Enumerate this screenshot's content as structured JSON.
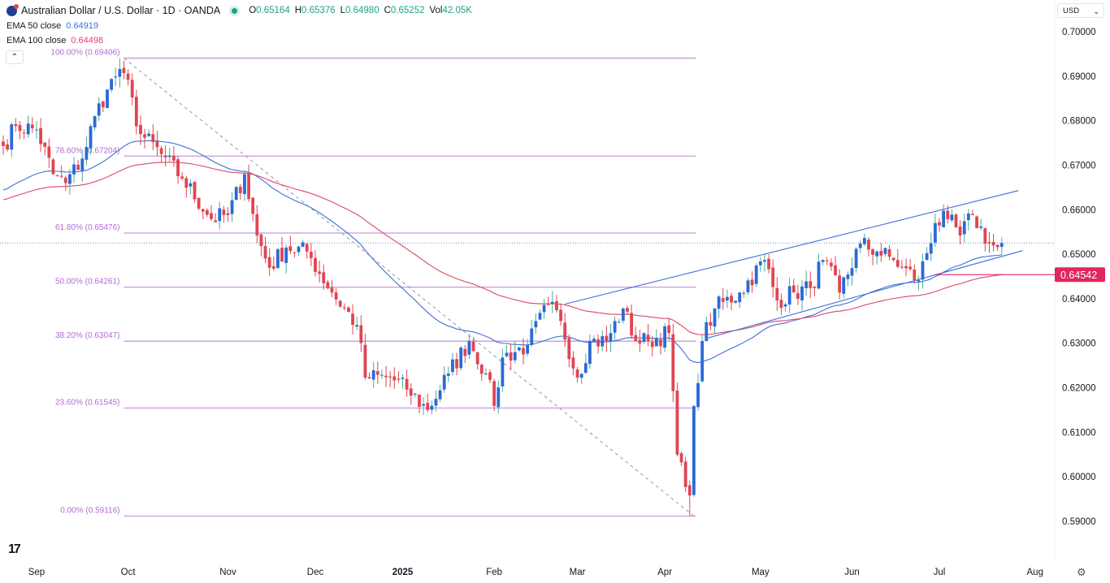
{
  "header": {
    "symbol": "Australian Dollar / U.S. Dollar · 1D · OANDA",
    "open_label": "O",
    "open": "0.65164",
    "high_label": "H",
    "high": "0.65376",
    "low_label": "L",
    "low": "0.64980",
    "close_label": "C",
    "close": "0.65252",
    "vol_label": "Vol",
    "vol": "42.05K"
  },
  "indicators": [
    {
      "label": "EMA 50 close",
      "value": "0.64919",
      "color": "#3d6fd8"
    },
    {
      "label": "EMA 100 close",
      "value": "0.64498",
      "color": "#e0456a"
    }
  ],
  "currency_selector": "USD",
  "collapse_icon": "chevron-up-icon",
  "logo": "TV",
  "chart_data": {
    "type": "candlestick",
    "title": "Australian Dollar / U.S. Dollar · 1D · OANDA",
    "ylim": [
      0.585,
      0.705
    ],
    "y_ticks": [
      "0.70000",
      "0.69000",
      "0.68000",
      "0.67000",
      "0.66000",
      "0.65000",
      "0.64000",
      "0.63000",
      "0.62000",
      "0.61000",
      "0.60000",
      "0.59000"
    ],
    "x_ticks": [
      {
        "label": "Sep",
        "day": 8
      },
      {
        "label": "Oct",
        "day": 30
      },
      {
        "label": "Nov",
        "day": 54
      },
      {
        "label": "Dec",
        "day": 75
      },
      {
        "label": "2025",
        "day": 96,
        "bold": true
      },
      {
        "label": "Feb",
        "day": 118
      },
      {
        "label": "Mar",
        "day": 138
      },
      {
        "label": "Apr",
        "day": 159
      },
      {
        "label": "May",
        "day": 182
      },
      {
        "label": "Jun",
        "day": 204
      },
      {
        "label": "Jul",
        "day": 225
      },
      {
        "label": "Aug",
        "day": 248
      }
    ],
    "days_visible": 253,
    "close_anchors": [
      [
        0,
        0.6743
      ],
      [
        3,
        0.6788
      ],
      [
        8,
        0.678
      ],
      [
        12,
        0.668
      ],
      [
        15,
        0.666
      ],
      [
        19,
        0.6715
      ],
      [
        22,
        0.681
      ],
      [
        25,
        0.687
      ],
      [
        28,
        0.6916
      ],
      [
        29,
        0.6907
      ],
      [
        33,
        0.677
      ],
      [
        38,
        0.6725
      ],
      [
        43,
        0.667
      ],
      [
        50,
        0.6579
      ],
      [
        54,
        0.6588
      ],
      [
        58,
        0.668
      ],
      [
        61,
        0.6542
      ],
      [
        64,
        0.647
      ],
      [
        68,
        0.6515
      ],
      [
        73,
        0.6506
      ],
      [
        79,
        0.6414
      ],
      [
        85,
        0.6341
      ],
      [
        87,
        0.6223
      ],
      [
        93,
        0.6223
      ],
      [
        97,
        0.6196
      ],
      [
        102,
        0.615
      ],
      [
        107,
        0.6232
      ],
      [
        112,
        0.6305
      ],
      [
        116,
        0.6232
      ],
      [
        118,
        0.6159
      ],
      [
        120,
        0.6268
      ],
      [
        126,
        0.6296
      ],
      [
        131,
        0.6387
      ],
      [
        134,
        0.635
      ],
      [
        138,
        0.6223
      ],
      [
        141,
        0.6305
      ],
      [
        145,
        0.6305
      ],
      [
        149,
        0.6378
      ],
      [
        152,
        0.6305
      ],
      [
        155,
        0.6305
      ],
      [
        160,
        0.6323
      ],
      [
        162,
        0.605
      ],
      [
        164,
        0.5977
      ],
      [
        165,
        0.5958
      ],
      [
        166,
        0.6159
      ],
      [
        168,
        0.6305
      ],
      [
        171,
        0.6378
      ],
      [
        177,
        0.6414
      ],
      [
        183,
        0.6487
      ],
      [
        186,
        0.6396
      ],
      [
        190,
        0.6414
      ],
      [
        194,
        0.6424
      ],
      [
        197,
        0.6487
      ],
      [
        201,
        0.6414
      ],
      [
        206,
        0.6524
      ],
      [
        210,
        0.6506
      ],
      [
        214,
        0.6487
      ],
      [
        216,
        0.647
      ],
      [
        220,
        0.6442
      ],
      [
        224,
        0.657
      ],
      [
        227,
        0.6579
      ],
      [
        230,
        0.6542
      ],
      [
        233,
        0.6588
      ],
      [
        237,
        0.6524
      ],
      [
        239,
        0.6516
      ],
      [
        240,
        0.6525
      ]
    ],
    "last_candle": {
      "open": 0.65164,
      "high": 0.65376,
      "low": 0.6498,
      "close": 0.65252
    },
    "ema_seed": {
      "ema50": 0.664,
      "ema100": 0.662
    },
    "series": [
      {
        "name": "EMA 50 close",
        "period": 50,
        "color": "#3d6fd8"
      },
      {
        "name": "EMA 100 close",
        "period": 100,
        "color": "#e0456a"
      }
    ],
    "colors": {
      "up": "#2a6ad8",
      "down": "#e04552",
      "up_wick": "#4fa99a",
      "down_wick": "#e04552",
      "fib": "#c89ad8",
      "fib_text": "#b36bd1",
      "channel": "#3d6fd8",
      "level": "#e0265e"
    },
    "fibonacci": {
      "from": {
        "day": 29,
        "price": 0.69406
      },
      "to": {
        "day": 166,
        "price": 0.59116
      },
      "end_day": 166.5,
      "levels": [
        {
          "label": "100.00% (0.69406)",
          "price": 0.69406
        },
        {
          "label": "78.60% (0.67204)",
          "price": 0.67204
        },
        {
          "label": "61.80% (0.65476)",
          "price": 0.65476
        },
        {
          "label": "50.00% (0.64261)",
          "price": 0.64261
        },
        {
          "label": "38.20% (0.63047)",
          "price": 0.63047
        },
        {
          "label": "23.60% (0.61545)",
          "price": 0.61545
        },
        {
          "label": "0.00% (0.59116)",
          "price": 0.59116
        }
      ]
    },
    "channel": [
      {
        "name": "upper",
        "from": {
          "day": 135,
          "price": 0.6388
        },
        "to": {
          "day": 244,
          "price": 0.6643
        }
      },
      {
        "name": "lower",
        "from": {
          "day": 169,
          "price": 0.6311
        },
        "to": {
          "day": 245,
          "price": 0.6508
        }
      }
    ],
    "horizontal_level": {
      "price": 0.64542,
      "label": "0.64542",
      "from_day": 224
    },
    "last_price": 0.65252
  }
}
